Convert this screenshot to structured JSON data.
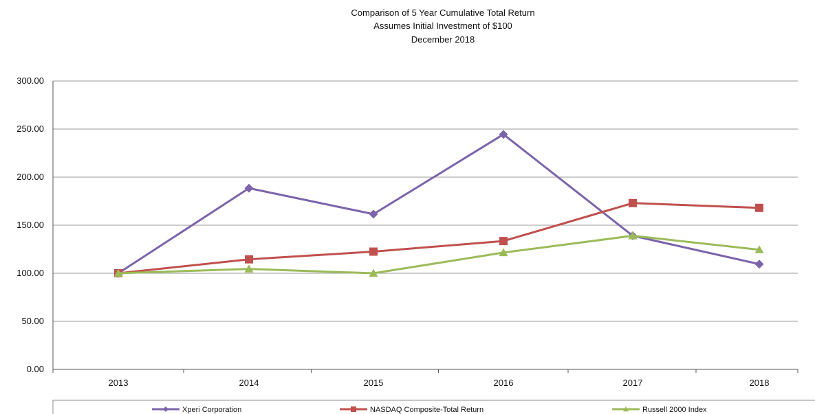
{
  "chart_data": {
    "type": "line",
    "title": [
      "Comparison of 5 Year Cumulative Total Return",
      "Assumes Initial Investment of $100",
      "December 2018"
    ],
    "categories": [
      "2013",
      "2014",
      "2015",
      "2016",
      "2017",
      "2018"
    ],
    "ylim": [
      0,
      300
    ],
    "yticks": [
      "0.00",
      "50.00",
      "100.00",
      "150.00",
      "200.00",
      "250.00",
      "300.00"
    ],
    "grid": true,
    "legend_position": "bottom",
    "series": [
      {
        "name": "Xperi Corporation",
        "color": "#7b64ab",
        "marker": "diamond",
        "values": [
          100,
          188.5,
          161.5,
          244.5,
          139,
          109.5
        ]
      },
      {
        "name": "NASDAQ Composite-Total Return",
        "color": "#c0504d",
        "marker": "square",
        "values": [
          100,
          114.5,
          122.5,
          133.5,
          173,
          168
        ]
      },
      {
        "name": "Russell 2000 Index",
        "color": "#9bbb59",
        "marker": "triangle",
        "values": [
          100,
          104.5,
          100,
          121.5,
          139,
          124.5
        ]
      }
    ]
  }
}
